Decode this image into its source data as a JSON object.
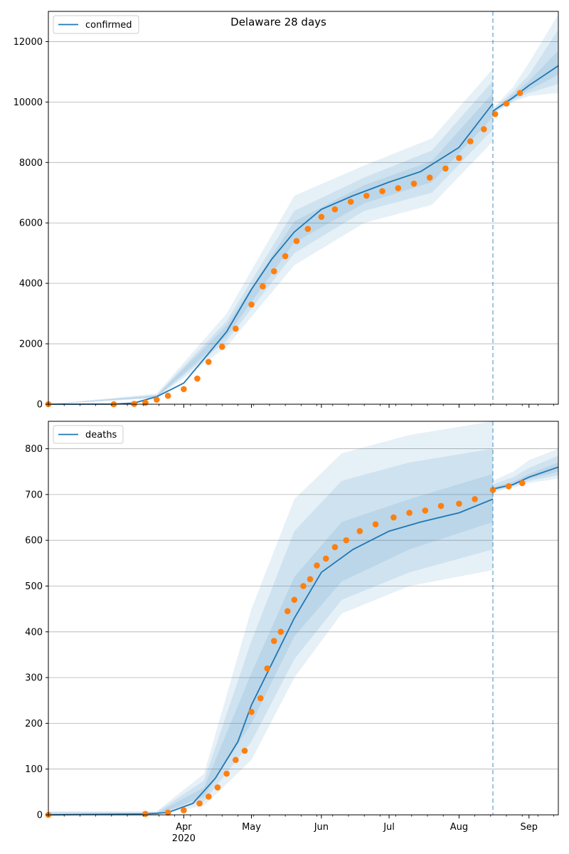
{
  "colors": {
    "line": "#1f77b4",
    "points": "#ff7f0e",
    "band": "#1f77b4",
    "grid": "#b0b0b0",
    "axes": "#000000"
  },
  "chart_data": [
    {
      "type": "line",
      "title": "Delaware 28 days",
      "xlabel": "",
      "ylabel": "",
      "xlim": [
        "2020-02-01",
        "2020-09-14"
      ],
      "ylim": [
        0,
        13000
      ],
      "y_ticks": [
        0,
        2000,
        4000,
        6000,
        8000,
        10000,
        12000
      ],
      "x_ticks": [
        {
          "date": "2020-04-01",
          "label": "Apr",
          "year": "2020"
        },
        {
          "date": "2020-05-01",
          "label": "May"
        },
        {
          "date": "2020-06-01",
          "label": "Jun"
        },
        {
          "date": "2020-07-01",
          "label": "Jul"
        },
        {
          "date": "2020-08-01",
          "label": "Aug"
        },
        {
          "date": "2020-09-01",
          "label": "Sep"
        }
      ],
      "x_tick_labels_shown": false,
      "grid": "horizontal",
      "legend": {
        "placement": "top-left",
        "entries": [
          "confirmed"
        ]
      },
      "forecast_start": "2020-08-16",
      "series": [
        {
          "name": "confirmed",
          "kind": "model-fit-line",
          "points": [
            [
              "2020-02-01",
              0
            ],
            [
              "2020-03-01",
              5
            ],
            [
              "2020-03-10",
              40
            ],
            [
              "2020-03-20",
              250
            ],
            [
              "2020-04-01",
              700
            ],
            [
              "2020-04-10",
              1500
            ],
            [
              "2020-04-20",
              2400
            ],
            [
              "2020-05-01",
              3800
            ],
            [
              "2020-05-10",
              4800
            ],
            [
              "2020-05-20",
              5700
            ],
            [
              "2020-06-01",
              6450
            ],
            [
              "2020-06-15",
              6900
            ],
            [
              "2020-07-01",
              7350
            ],
            [
              "2020-07-15",
              7700
            ],
            [
              "2020-08-01",
              8500
            ],
            [
              "2020-08-16",
              9950
            ]
          ]
        },
        {
          "name": "confirmed-forecast",
          "kind": "forecast-line",
          "points": [
            [
              "2020-08-16",
              9700
            ],
            [
              "2020-08-25",
              10150
            ],
            [
              "2020-09-01",
              10550
            ],
            [
              "2020-09-14",
              11200
            ]
          ]
        },
        {
          "name": "observed",
          "kind": "scatter",
          "points": [
            [
              "2020-02-01",
              0
            ],
            [
              "2020-03-01",
              0
            ],
            [
              "2020-03-10",
              10
            ],
            [
              "2020-03-15",
              50
            ],
            [
              "2020-03-20",
              150
            ],
            [
              "2020-03-25",
              280
            ],
            [
              "2020-04-01",
              500
            ],
            [
              "2020-04-07",
              850
            ],
            [
              "2020-04-12",
              1400
            ],
            [
              "2020-04-18",
              1900
            ],
            [
              "2020-04-24",
              2500
            ],
            [
              "2020-05-01",
              3300
            ],
            [
              "2020-05-06",
              3900
            ],
            [
              "2020-05-11",
              4400
            ],
            [
              "2020-05-16",
              4900
            ],
            [
              "2020-05-21",
              5400
            ],
            [
              "2020-05-26",
              5800
            ],
            [
              "2020-06-01",
              6200
            ],
            [
              "2020-06-07",
              6450
            ],
            [
              "2020-06-14",
              6700
            ],
            [
              "2020-06-21",
              6900
            ],
            [
              "2020-06-28",
              7050
            ],
            [
              "2020-07-05",
              7150
            ],
            [
              "2020-07-12",
              7300
            ],
            [
              "2020-07-19",
              7500
            ],
            [
              "2020-07-26",
              7800
            ],
            [
              "2020-08-01",
              8150
            ],
            [
              "2020-08-06",
              8700
            ],
            [
              "2020-08-12",
              9100
            ],
            [
              "2020-08-17",
              9600
            ],
            [
              "2020-08-22",
              9950
            ],
            [
              "2020-08-28",
              10300
            ]
          ]
        }
      ],
      "bands": [
        {
          "kind": "fit",
          "x": [
            "2020-02-01",
            "2020-03-20",
            "2020-04-20",
            "2020-05-20",
            "2020-06-20",
            "2020-07-20",
            "2020-08-16"
          ],
          "lower": [
            0,
            200,
            1900,
            4600,
            6000,
            6600,
            8700
          ],
          "upper": [
            0,
            350,
            3000,
            6900,
            7900,
            8800,
            11100
          ]
        },
        {
          "kind": "fit",
          "x": [
            "2020-02-01",
            "2020-03-20",
            "2020-04-20",
            "2020-05-20",
            "2020-06-20",
            "2020-07-20",
            "2020-08-16"
          ],
          "lower": [
            0,
            220,
            2100,
            5000,
            6400,
            7000,
            9100
          ],
          "upper": [
            0,
            310,
            2750,
            6400,
            7500,
            8400,
            10700
          ]
        },
        {
          "kind": "fit",
          "x": [
            "2020-02-01",
            "2020-03-20",
            "2020-04-20",
            "2020-05-20",
            "2020-06-20",
            "2020-07-20",
            "2020-08-16"
          ],
          "lower": [
            0,
            235,
            2250,
            5350,
            6650,
            7350,
            9500
          ],
          "upper": [
            0,
            285,
            2600,
            6050,
            7250,
            8050,
            10300
          ]
        },
        {
          "kind": "forecast",
          "x": [
            "2020-08-16",
            "2020-08-25",
            "2020-09-01",
            "2020-09-14"
          ],
          "lower": [
            9600,
            10000,
            10200,
            10300
          ],
          "upper": [
            9800,
            10500,
            11300,
            12900
          ]
        },
        {
          "kind": "forecast",
          "x": [
            "2020-08-16",
            "2020-08-25",
            "2020-09-01",
            "2020-09-14"
          ],
          "lower": [
            9650,
            10050,
            10300,
            10600
          ],
          "upper": [
            9750,
            10350,
            10900,
            12400
          ]
        },
        {
          "kind": "forecast",
          "x": [
            "2020-08-16",
            "2020-08-25",
            "2020-09-01",
            "2020-09-14"
          ],
          "lower": [
            9680,
            10100,
            10400,
            10900
          ],
          "upper": [
            9720,
            10250,
            10700,
            11700
          ]
        }
      ]
    },
    {
      "type": "line",
      "title": "",
      "xlabel": "",
      "ylabel": "",
      "xlim": [
        "2020-02-01",
        "2020-09-14"
      ],
      "ylim": [
        0,
        860
      ],
      "y_ticks": [
        0,
        100,
        200,
        300,
        400,
        500,
        600,
        700,
        800
      ],
      "x_ticks": [
        {
          "date": "2020-04-01",
          "label": "Apr",
          "year": "2020"
        },
        {
          "date": "2020-05-01",
          "label": "May"
        },
        {
          "date": "2020-06-01",
          "label": "Jun"
        },
        {
          "date": "2020-07-01",
          "label": "Jul"
        },
        {
          "date": "2020-08-01",
          "label": "Aug"
        },
        {
          "date": "2020-09-01",
          "label": "Sep"
        }
      ],
      "x_tick_labels_shown": true,
      "grid": "horizontal",
      "legend": {
        "placement": "top-left",
        "entries": [
          "deaths"
        ]
      },
      "forecast_start": "2020-08-16",
      "series": [
        {
          "name": "deaths",
          "kind": "model-fit-line",
          "points": [
            [
              "2020-02-01",
              0
            ],
            [
              "2020-03-15",
              2
            ],
            [
              "2020-03-25",
              5
            ],
            [
              "2020-04-05",
              25
            ],
            [
              "2020-04-15",
              80
            ],
            [
              "2020-04-25",
              160
            ],
            [
              "2020-05-01",
              240
            ],
            [
              "2020-05-10",
              330
            ],
            [
              "2020-05-20",
              430
            ],
            [
              "2020-06-01",
              530
            ],
            [
              "2020-06-15",
              580
            ],
            [
              "2020-07-01",
              620
            ],
            [
              "2020-07-15",
              640
            ],
            [
              "2020-08-01",
              660
            ],
            [
              "2020-08-16",
              690
            ]
          ]
        },
        {
          "name": "deaths-forecast",
          "kind": "forecast-line",
          "points": [
            [
              "2020-08-16",
              712
            ],
            [
              "2020-08-25",
              722
            ],
            [
              "2020-09-01",
              738
            ],
            [
              "2020-09-14",
              760
            ]
          ]
        },
        {
          "name": "observed",
          "kind": "scatter",
          "points": [
            [
              "2020-02-01",
              0
            ],
            [
              "2020-03-15",
              2
            ],
            [
              "2020-03-25",
              5
            ],
            [
              "2020-04-01",
              10
            ],
            [
              "2020-04-08",
              25
            ],
            [
              "2020-04-12",
              40
            ],
            [
              "2020-04-16",
              60
            ],
            [
              "2020-04-20",
              90
            ],
            [
              "2020-04-24",
              120
            ],
            [
              "2020-04-28",
              140
            ],
            [
              "2020-05-01",
              225
            ],
            [
              "2020-05-05",
              255
            ],
            [
              "2020-05-08",
              320
            ],
            [
              "2020-05-11",
              380
            ],
            [
              "2020-05-14",
              400
            ],
            [
              "2020-05-17",
              445
            ],
            [
              "2020-05-20",
              470
            ],
            [
              "2020-05-24",
              500
            ],
            [
              "2020-05-27",
              515
            ],
            [
              "2020-05-30",
              545
            ],
            [
              "2020-06-03",
              560
            ],
            [
              "2020-06-07",
              585
            ],
            [
              "2020-06-12",
              600
            ],
            [
              "2020-06-18",
              620
            ],
            [
              "2020-06-25",
              635
            ],
            [
              "2020-07-03",
              650
            ],
            [
              "2020-07-10",
              660
            ],
            [
              "2020-07-17",
              665
            ],
            [
              "2020-07-24",
              675
            ],
            [
              "2020-08-01",
              680
            ],
            [
              "2020-08-08",
              690
            ],
            [
              "2020-08-16",
              710
            ],
            [
              "2020-08-23",
              718
            ],
            [
              "2020-08-29",
              725
            ]
          ]
        }
      ],
      "bands": [
        {
          "kind": "fit",
          "x": [
            "2020-02-01",
            "2020-03-20",
            "2020-04-10",
            "2020-05-01",
            "2020-05-20",
            "2020-06-10",
            "2020-07-10",
            "2020-08-16"
          ],
          "lower": [
            0,
            0,
            20,
            120,
            300,
            440,
            500,
            535
          ],
          "upper": [
            8,
            8,
            90,
            450,
            690,
            790,
            830,
            860
          ]
        },
        {
          "kind": "fit",
          "x": [
            "2020-02-01",
            "2020-03-20",
            "2020-04-10",
            "2020-05-01",
            "2020-05-20",
            "2020-06-10",
            "2020-07-10",
            "2020-08-16"
          ],
          "lower": [
            0,
            0,
            30,
            160,
            340,
            470,
            530,
            580
          ],
          "upper": [
            6,
            6,
            75,
            380,
            620,
            730,
            770,
            800
          ]
        },
        {
          "kind": "fit",
          "x": [
            "2020-02-01",
            "2020-03-20",
            "2020-04-10",
            "2020-05-01",
            "2020-05-20",
            "2020-06-10",
            "2020-07-10",
            "2020-08-16"
          ],
          "lower": [
            0,
            0,
            40,
            200,
            390,
            510,
            580,
            640
          ],
          "upper": [
            4,
            4,
            60,
            310,
            520,
            640,
            690,
            745
          ]
        },
        {
          "kind": "forecast",
          "x": [
            "2020-08-16",
            "2020-08-25",
            "2020-09-01",
            "2020-09-14"
          ],
          "lower": [
            705,
            715,
            725,
            735
          ],
          "upper": [
            730,
            750,
            775,
            800
          ]
        },
        {
          "kind": "forecast",
          "x": [
            "2020-08-16",
            "2020-08-25",
            "2020-09-01",
            "2020-09-14"
          ],
          "lower": [
            708,
            718,
            730,
            742
          ],
          "upper": [
            722,
            738,
            758,
            785
          ]
        },
        {
          "kind": "forecast",
          "x": [
            "2020-08-16",
            "2020-08-25",
            "2020-09-01",
            "2020-09-14"
          ],
          "lower": [
            710,
            720,
            734,
            750
          ],
          "upper": [
            716,
            728,
            745,
            770
          ]
        }
      ]
    }
  ]
}
